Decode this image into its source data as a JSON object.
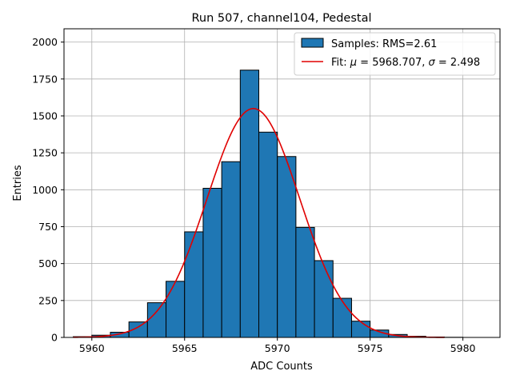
{
  "chart_data": {
    "type": "bar",
    "title": "Run 507, channel104, Pedestal",
    "xlabel": "ADC Counts",
    "ylabel": "Entries",
    "xlim": [
      5958.5,
      5982.0
    ],
    "ylim": [
      0,
      2090
    ],
    "xticks": [
      5960,
      5965,
      5970,
      5975,
      5980
    ],
    "yticks": [
      0,
      250,
      500,
      750,
      1000,
      1250,
      1500,
      1750,
      2000
    ],
    "grid": true,
    "legend_position": "top-right",
    "histogram": {
      "name": "Samples: RMS=2.61",
      "color": "#1f77b4",
      "bin_edges": [
        5959,
        5960,
        5961,
        5962,
        5963,
        5964,
        5965,
        5966,
        5967,
        5968,
        5969,
        5970,
        5971,
        5972,
        5973,
        5974,
        5975,
        5976,
        5977,
        5978,
        5979,
        5980,
        5981
      ],
      "counts": [
        5,
        15,
        35,
        105,
        235,
        380,
        715,
        1010,
        1190,
        1810,
        1390,
        1225,
        745,
        520,
        265,
        110,
        50,
        20,
        8,
        3,
        1,
        0
      ]
    },
    "fit": {
      "name_text": "Fit: ",
      "mu_symbol": "μ",
      "mu_text": " = 5968.707, ",
      "sigma_symbol": "σ",
      "sigma_text": " = 2.498",
      "color": "#e00000",
      "mu": 5968.707,
      "sigma": 2.498,
      "amplitude": 1550,
      "x_range": [
        5959,
        5979
      ]
    }
  }
}
